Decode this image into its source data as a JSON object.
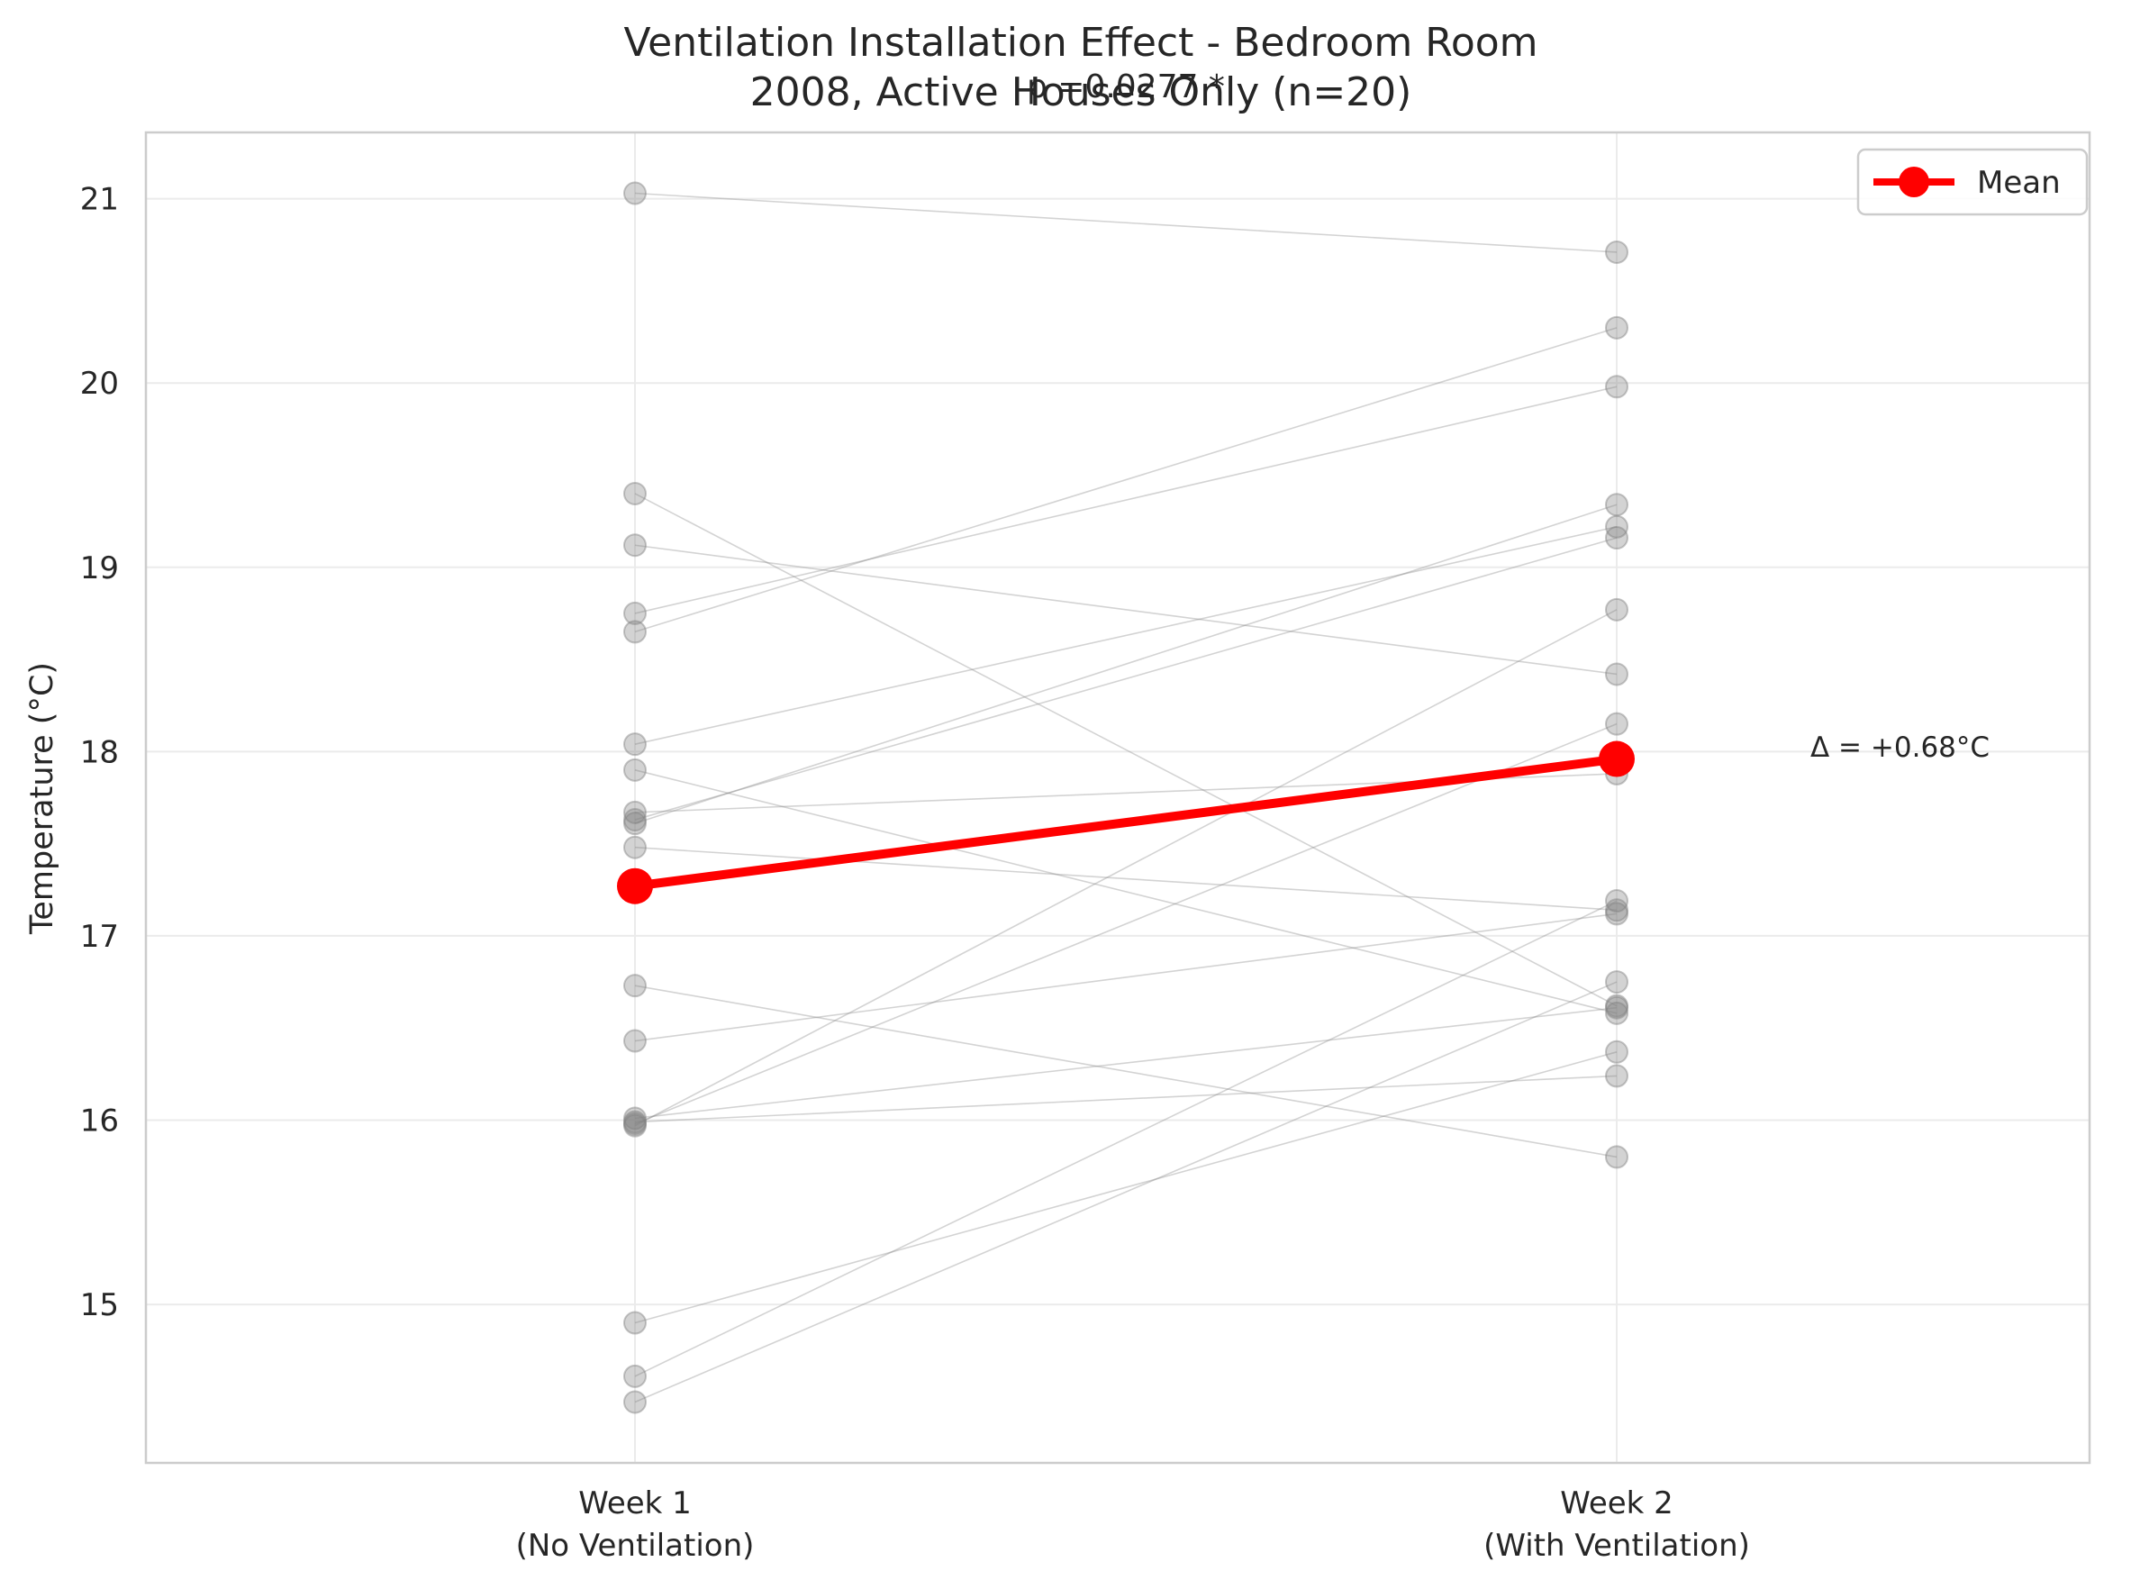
{
  "chart_data": {
    "type": "line",
    "title_line1": "Ventilation Installation Effect - Bedroom Room",
    "title_line2": "2008, Active Houses Only (n=20)",
    "annotation_p": "p =0.0277 *",
    "annotation_delta": "Δ = +0.68°C",
    "ylabel": "Temperature (°C)",
    "xlabel": "",
    "categories": [
      {
        "line1": "Week 1",
        "line2": "(No Ventilation)"
      },
      {
        "line1": "Week 2",
        "line2": "(With Ventilation)"
      }
    ],
    "ylim": [
      14.14,
      21.36
    ],
    "yticks": [
      15,
      16,
      17,
      18,
      19,
      20,
      21
    ],
    "grid": true,
    "legend": {
      "position": "top-right",
      "label": "Mean"
    },
    "colors": {
      "mean": "#ff0000",
      "houses": "#808080"
    },
    "mean": [
      17.27,
      17.96
    ],
    "houses": [
      [
        21.03,
        20.71
      ],
      [
        19.4,
        16.62
      ],
      [
        19.12,
        18.42
      ],
      [
        18.75,
        19.98
      ],
      [
        18.65,
        20.3
      ],
      [
        18.04,
        19.22
      ],
      [
        17.9,
        16.58
      ],
      [
        17.67,
        17.88
      ],
      [
        17.63,
        19.16
      ],
      [
        17.61,
        19.34
      ],
      [
        17.48,
        17.14
      ],
      [
        16.73,
        15.8
      ],
      [
        16.43,
        17.12
      ],
      [
        16.01,
        16.61
      ],
      [
        15.99,
        16.24
      ],
      [
        15.97,
        18.77
      ],
      [
        15.98,
        18.15
      ],
      [
        14.9,
        16.37
      ],
      [
        14.61,
        17.19
      ],
      [
        14.47,
        16.75
      ]
    ]
  }
}
